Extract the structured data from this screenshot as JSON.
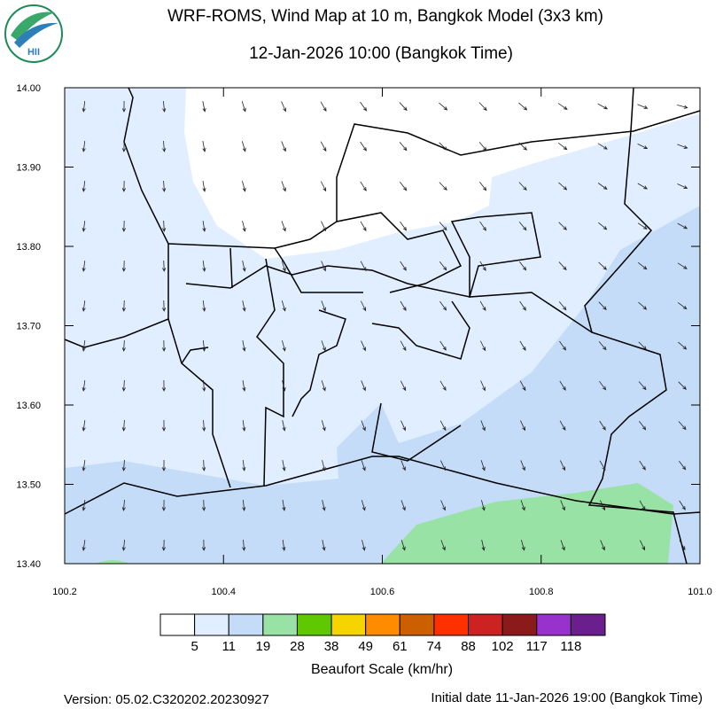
{
  "header": {
    "title": "WRF-ROMS, Wind Map at 10 m, Bangkok Model (3x3 km)",
    "subtitle": "12-Jan-2026 10:00 (Bangkok Time)",
    "logo_text": "HII"
  },
  "map": {
    "xlim": [
      100.2,
      101.0
    ],
    "ylim": [
      13.4,
      14.0
    ],
    "xticks": [
      {
        "value": 100.2,
        "label": "100.2"
      },
      {
        "value": 100.4,
        "label": "100.4"
      },
      {
        "value": 100.6,
        "label": "100.6"
      },
      {
        "value": 100.8,
        "label": "100.8"
      },
      {
        "value": 101.0,
        "label": "101.0"
      }
    ],
    "yticks": [
      {
        "value": 13.4,
        "label": "13.40"
      },
      {
        "value": 13.5,
        "label": "13.50"
      },
      {
        "value": 13.6,
        "label": "13.60"
      },
      {
        "value": 13.7,
        "label": "13.70"
      },
      {
        "value": 13.8,
        "label": "13.80"
      },
      {
        "value": 13.9,
        "label": "13.90"
      },
      {
        "value": 14.0,
        "label": "14.00"
      }
    ]
  },
  "colorbar": {
    "title": "Beaufort Scale (km/hr)",
    "levels": [
      5,
      11,
      19,
      28,
      38,
      49,
      61,
      74,
      88,
      102,
      117,
      118
    ],
    "colors": [
      "#ffffff",
      "#e0eeff",
      "#c4dcf8",
      "#98e2a6",
      "#5fc800",
      "#f5d400",
      "#ff8c00",
      "#cc5f00",
      "#ff3000",
      "#cc2222",
      "#8b1a1a",
      "#9932cc",
      "#6b1f8f"
    ]
  },
  "footer": {
    "version": "Version: 05.02.C320202.20230927",
    "initial": "Initial date 11-Jan-2026 19:00 (Bangkok Time)"
  }
}
